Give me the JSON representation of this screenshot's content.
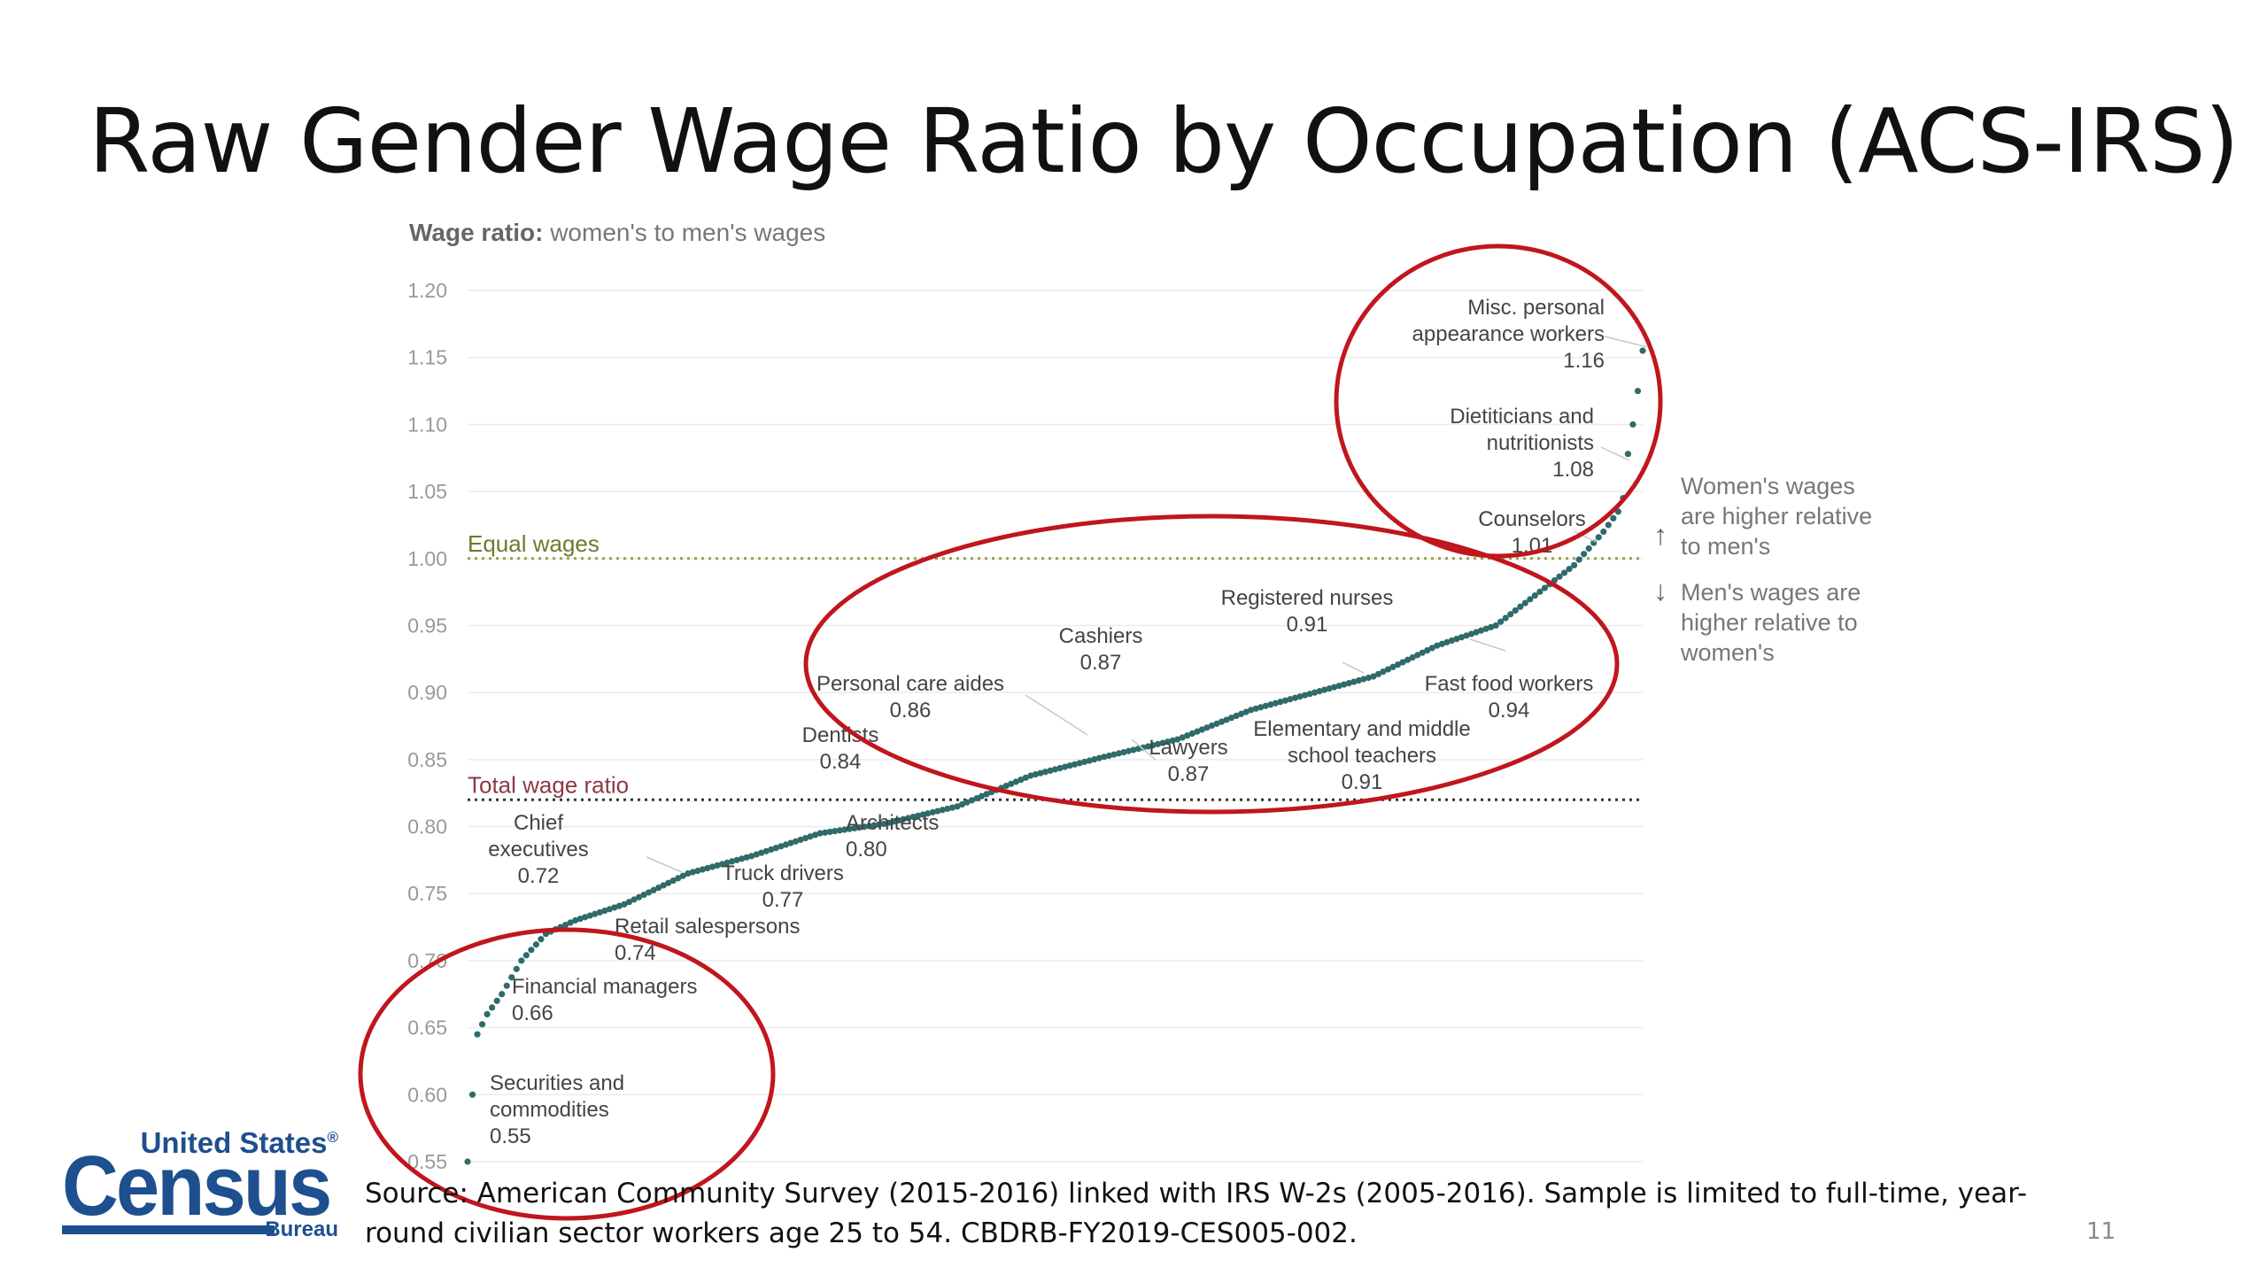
{
  "slide": {
    "title": "Raw Gender Wage Ratio by Occupation (ACS-IRS)",
    "source_note": "Source: American Community Survey (2015-2016) linked with IRS W-2s (2005-2016). Sample is limited to full-time, year-round civilian sector workers age 25 to 54. CBDRB-FY2019-CES005-002.",
    "slide_number": "11"
  },
  "logo": {
    "top_text": "United States",
    "registered": "®",
    "main_text": "Census",
    "bottom_text": "Bureau"
  },
  "colors": {
    "points": "#2f6b6b",
    "equal_line": "#9aa14a",
    "total_line": "#333333",
    "equal_label": "#6f7a2c",
    "total_label": "#8b3a46",
    "circles": "#c0161d",
    "axis_text": "#999999",
    "annotation_text": "#444444",
    "grid": "#ececec",
    "logo": "#1e4f8f"
  },
  "chart_data": {
    "type": "scatter",
    "title_bold": "Wage ratio:",
    "title_rest": " women's to men's wages",
    "xlabel": "",
    "ylabel": "",
    "ylim": [
      0.55,
      1.2
    ],
    "y_ticks": [
      "1.20",
      "1.15",
      "1.10",
      "1.05",
      "1.00",
      "0.95",
      "0.90",
      "0.85",
      "0.80",
      "0.75",
      "0.70",
      "0.65",
      "0.60",
      "0.55"
    ],
    "grid": true,
    "n_occupations": 240,
    "curve_anchors": [
      [
        0,
        0.55
      ],
      [
        1,
        0.6
      ],
      [
        2,
        0.645
      ],
      [
        4,
        0.66
      ],
      [
        7,
        0.675
      ],
      [
        11,
        0.7
      ],
      [
        16,
        0.72
      ],
      [
        22,
        0.73
      ],
      [
        32,
        0.742
      ],
      [
        45,
        0.765
      ],
      [
        58,
        0.778
      ],
      [
        72,
        0.795
      ],
      [
        85,
        0.802
      ],
      [
        100,
        0.815
      ],
      [
        115,
        0.838
      ],
      [
        130,
        0.852
      ],
      [
        145,
        0.865
      ],
      [
        160,
        0.887
      ],
      [
        175,
        0.902
      ],
      [
        185,
        0.912
      ],
      [
        198,
        0.935
      ],
      [
        210,
        0.95
      ],
      [
        220,
        0.978
      ],
      [
        226,
        0.995
      ],
      [
        232,
        1.02
      ],
      [
        235,
        1.035
      ],
      [
        236,
        1.045
      ],
      [
        237,
        1.078
      ],
      [
        238,
        1.1
      ],
      [
        239,
        1.125
      ],
      [
        240,
        1.155
      ]
    ],
    "reference_lines": [
      {
        "label": "Equal wages",
        "value": 1.0
      },
      {
        "label": "Total wage ratio",
        "value": 0.82
      }
    ],
    "annotations": [
      {
        "label": [
          "Securities and",
          "commodities",
          "0.55"
        ],
        "value": 0.55
      },
      {
        "label": [
          "Financial managers",
          "0.66"
        ],
        "value": 0.66
      },
      {
        "label": [
          "Chief",
          "executives",
          "0.72"
        ],
        "value": 0.72
      },
      {
        "label": [
          "Retail salespersons",
          "0.74"
        ],
        "value": 0.74
      },
      {
        "label": [
          "Truck drivers",
          "0.77"
        ],
        "value": 0.77
      },
      {
        "label": [
          "Architects",
          "0.80"
        ],
        "value": 0.8
      },
      {
        "label": [
          "Dentists",
          "0.84"
        ],
        "value": 0.84
      },
      {
        "label": [
          "Personal care aides",
          "0.86"
        ],
        "value": 0.86
      },
      {
        "label": [
          "Cashiers",
          "0.87"
        ],
        "value": 0.87
      },
      {
        "label": [
          "Lawyers",
          "0.87"
        ],
        "value": 0.87
      },
      {
        "label": [
          "Registered nurses",
          "0.91"
        ],
        "value": 0.91
      },
      {
        "label": [
          "Elementary and middle",
          "school teachers",
          "0.91"
        ],
        "value": 0.91
      },
      {
        "label": [
          "Fast food workers",
          "0.94"
        ],
        "value": 0.94
      },
      {
        "label": [
          "Counselors",
          "1.01"
        ],
        "value": 1.01
      },
      {
        "label": [
          "Dietiticians and",
          "nutritionists",
          "1.08"
        ],
        "value": 1.08
      },
      {
        "label": [
          "Misc. personal",
          "appearance workers",
          "1.16"
        ],
        "value": 1.16
      }
    ],
    "side_notes": {
      "up_arrow": "↑",
      "up": [
        "Women's wages",
        "are higher relative",
        "to men's"
      ],
      "down_arrow": "↓",
      "down": [
        "Men's wages are",
        "higher relative to",
        "women's"
      ]
    }
  }
}
